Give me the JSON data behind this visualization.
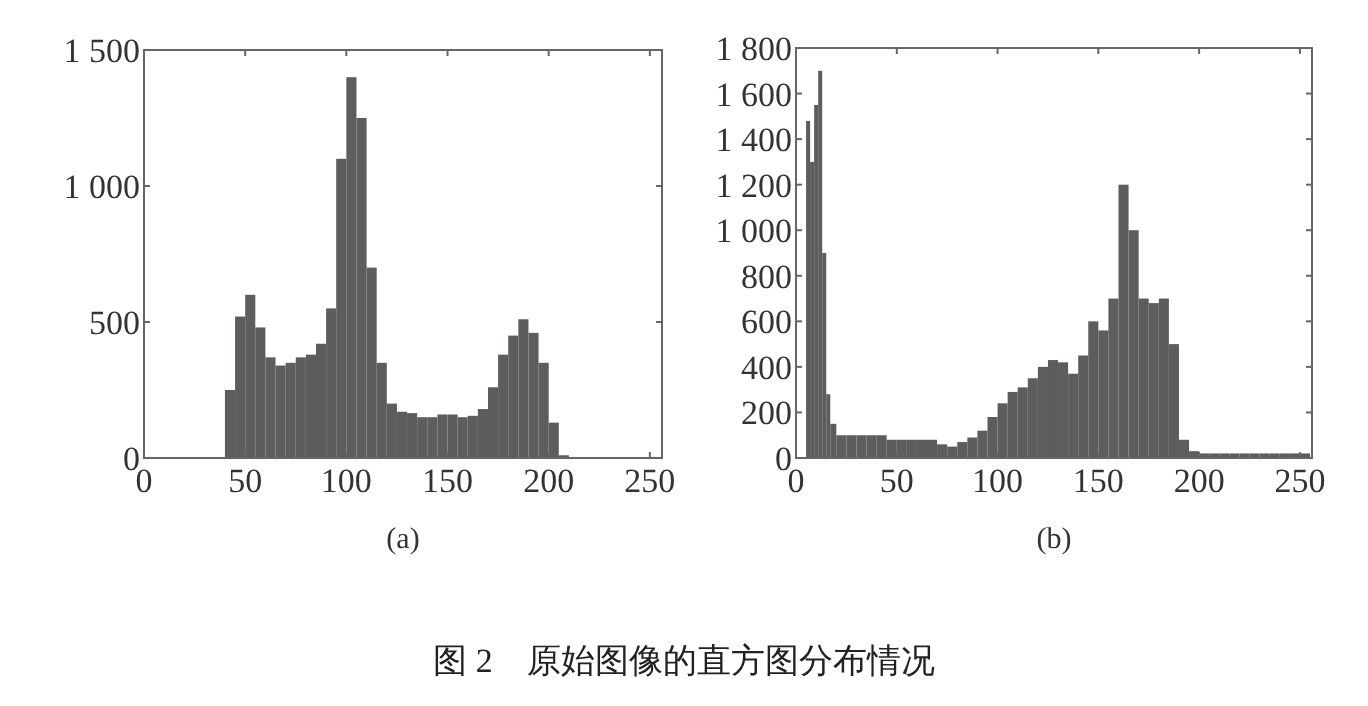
{
  "chart_data": [
    {
      "type": "histogram",
      "xlabel": "(a)",
      "color": "#5b5e5d",
      "xlim": [
        0,
        256
      ],
      "xticks": [
        0,
        50,
        100,
        150,
        200,
        250
      ],
      "ylim": [
        0,
        1500
      ],
      "yticks": [
        0,
        500,
        {
          "value": 1000,
          "label": "1 000"
        },
        {
          "value": 1500,
          "label": "1 500"
        }
      ],
      "bins": [
        40,
        45,
        50,
        55,
        60,
        65,
        70,
        75,
        80,
        85,
        90,
        95,
        100,
        105,
        110,
        115,
        120,
        125,
        130,
        135,
        140,
        145,
        150,
        155,
        160,
        165,
        170,
        175,
        180,
        185,
        190,
        195,
        200,
        205,
        210
      ],
      "values": [
        250,
        520,
        600,
        480,
        370,
        340,
        350,
        370,
        380,
        420,
        550,
        1100,
        1400,
        1250,
        700,
        350,
        200,
        170,
        165,
        150,
        150,
        160,
        160,
        150,
        155,
        180,
        260,
        380,
        450,
        510,
        460,
        350,
        130,
        10
      ],
      "annotations": [
        "图 2　原始图像的直方图分布情况"
      ]
    },
    {
      "type": "histogram",
      "xlabel": "(b)",
      "color": "#5b5e5d",
      "xlim": [
        0,
        256
      ],
      "xticks": [
        0,
        50,
        100,
        150,
        200,
        250
      ],
      "ylim": [
        0,
        1800
      ],
      "yticks": [
        0,
        200,
        400,
        600,
        800,
        {
          "value": 1000,
          "label": "1 000"
        },
        {
          "value": 1200,
          "label": "1 200"
        },
        {
          "value": 1400,
          "label": "1 400"
        },
        {
          "value": 1600,
          "label": "1 600"
        },
        {
          "value": 1800,
          "label": "1 800"
        }
      ],
      "bins": [
        5,
        7,
        9,
        11,
        13,
        15,
        17,
        20,
        25,
        30,
        35,
        40,
        45,
        50,
        55,
        60,
        65,
        70,
        75,
        80,
        85,
        90,
        95,
        100,
        105,
        110,
        115,
        120,
        125,
        130,
        135,
        140,
        145,
        150,
        155,
        160,
        165,
        170,
        175,
        180,
        185,
        190,
        195,
        200,
        205,
        210,
        215,
        220,
        225,
        230,
        235,
        240,
        245,
        250,
        255
      ],
      "values": [
        1480,
        1300,
        1550,
        1700,
        900,
        280,
        150,
        100,
        100,
        100,
        100,
        100,
        80,
        80,
        80,
        80,
        80,
        60,
        50,
        70,
        90,
        120,
        180,
        240,
        290,
        310,
        350,
        400,
        430,
        420,
        370,
        450,
        600,
        560,
        700,
        1200,
        1000,
        700,
        680,
        700,
        500,
        80,
        30,
        20,
        20,
        20,
        20,
        20,
        20,
        20,
        20,
        20,
        20,
        20
      ]
    }
  ]
}
